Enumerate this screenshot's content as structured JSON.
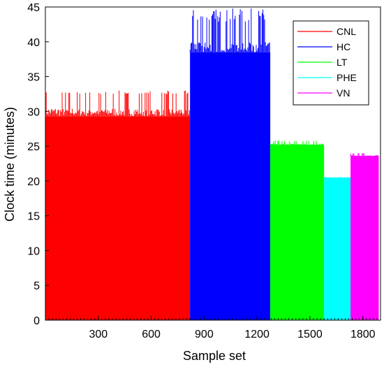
{
  "chart_data": {
    "type": "bar",
    "xlabel": "Sample set",
    "ylabel": "Clock time (minutes)",
    "xlim": [
      0,
      1900
    ],
    "ylim": [
      0,
      45
    ],
    "x_ticks": [
      300,
      600,
      900,
      1200,
      1500,
      1800
    ],
    "y_ticks": [
      0,
      5,
      10,
      15,
      20,
      25,
      30,
      35,
      40,
      45
    ],
    "grid": false,
    "legend_position": "top-right",
    "series": [
      {
        "name": "CNL",
        "color": "#ff0000",
        "x_range": [
          1,
          820
        ],
        "base_value": 29.3,
        "peak_value": 33.0
      },
      {
        "name": "HC",
        "color": "#0000ff",
        "x_range": [
          821,
          1275
        ],
        "base_value": 38.5,
        "peak_value": 44.8
      },
      {
        "name": "LT",
        "color": "#00ff00",
        "x_range": [
          1276,
          1580
        ],
        "base_value": 25.2,
        "peak_value": 25.8
      },
      {
        "name": "PHE",
        "color": "#00ffff",
        "x_range": [
          1581,
          1730
        ],
        "base_value": 20.5,
        "peak_value": 20.6
      },
      {
        "name": "VN",
        "color": "#ff00ff",
        "x_range": [
          1731,
          1890
        ],
        "base_value": 23.6,
        "peak_value": 24.0
      }
    ]
  }
}
